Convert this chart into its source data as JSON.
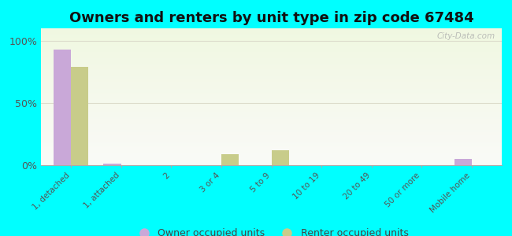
{
  "title": "Owners and renters by unit type in zip code 67484",
  "categories": [
    "1, detached",
    "1, attached",
    "2",
    "3 or 4",
    "5 to 9",
    "10 to 19",
    "20 to 49",
    "50 or more",
    "Mobile home"
  ],
  "owner_values": [
    93,
    1,
    0,
    0,
    0,
    0,
    0,
    0,
    5
  ],
  "renter_values": [
    79,
    0,
    0,
    9,
    12,
    0,
    0,
    0,
    0
  ],
  "owner_color": "#c9a8d8",
  "renter_color": "#c8cc8a",
  "background_color": "#00ffff",
  "yticks": [
    0,
    50,
    100
  ],
  "ylim": [
    0,
    110
  ],
  "bar_width": 0.35,
  "title_fontsize": 13,
  "legend_fontsize": 9,
  "watermark": "City-Data.com"
}
